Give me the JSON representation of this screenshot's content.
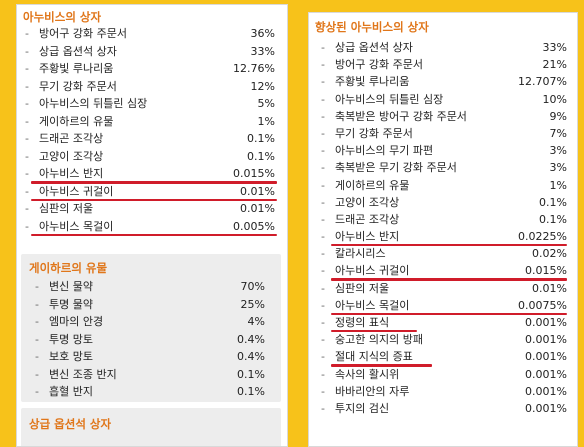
{
  "left_panel": {
    "title": "아누비스의 상자",
    "items": [
      {
        "name": "방어구 강화 주문서",
        "pct": "36%"
      },
      {
        "name": "상급 옵션석 상자",
        "pct": "33%"
      },
      {
        "name": "주황빛 루나리움",
        "pct": "12.76%"
      },
      {
        "name": "무기 강화 주문서",
        "pct": "12%"
      },
      {
        "name": "아누비스의 뒤틀린 심장",
        "pct": "5%"
      },
      {
        "name": "게이하르의 유물",
        "pct": "1%"
      },
      {
        "name": "드래곤 조각상",
        "pct": "0.1%"
      },
      {
        "name": "고양이 조각상",
        "pct": "0.1%"
      },
      {
        "name": "아누비스 반지",
        "pct": "0.015%",
        "marked": true
      },
      {
        "name": "아누비스 귀걸이",
        "pct": "0.01%",
        "marked": true
      },
      {
        "name": "심판의 저울",
        "pct": "0.01%"
      },
      {
        "name": "아누비스 목걸이",
        "pct": "0.005%",
        "marked": true
      }
    ],
    "gehari_box": {
      "title": "게이하르의 유물",
      "items": [
        {
          "name": "변신 물약",
          "pct": "70%"
        },
        {
          "name": "투명 물약",
          "pct": "25%"
        },
        {
          "name": "엠마의 안경",
          "pct": "4%"
        },
        {
          "name": "투명 망토",
          "pct": "0.4%"
        },
        {
          "name": "보호 망토",
          "pct": "0.4%"
        },
        {
          "name": "변신 조종 반지",
          "pct": "0.1%"
        },
        {
          "name": "흡혈 반지",
          "pct": "0.1%"
        }
      ]
    },
    "sanggeup_box": {
      "title": "상급 옵션석 상자"
    }
  },
  "right_panel": {
    "title": "향상된 아누비스의 상자",
    "items": [
      {
        "name": "상급 옵션석 상자",
        "pct": "33%"
      },
      {
        "name": "방어구 강화 주문서",
        "pct": "21%"
      },
      {
        "name": "주황빛 루나리움",
        "pct": "12.707%"
      },
      {
        "name": "아누비스의 뒤틀린 심장",
        "pct": "10%"
      },
      {
        "name": "축복받은 방어구 강화 주문서",
        "pct": "9%"
      },
      {
        "name": "무기 강화 주문서",
        "pct": "7%"
      },
      {
        "name": "아누비스의 무기 파편",
        "pct": "3%"
      },
      {
        "name": "축복받은 무기 강화 주문서",
        "pct": "3%"
      },
      {
        "name": "게이하르의 유물",
        "pct": "1%"
      },
      {
        "name": "고양이 조각상",
        "pct": "0.1%"
      },
      {
        "name": "드래곤 조각상",
        "pct": "0.1%"
      },
      {
        "name": "아누비스 반지",
        "pct": "0.0225%",
        "marked": true
      },
      {
        "name": "칼라시리스",
        "pct": "0.02%"
      },
      {
        "name": "아누비스 귀걸이",
        "pct": "0.015%",
        "marked": true
      },
      {
        "name": "심판의 저울",
        "pct": "0.01%"
      },
      {
        "name": "아누비스 목걸이",
        "pct": "0.0075%",
        "marked": true
      },
      {
        "name": "정령의 표식",
        "pct": "0.001%",
        "marked": true
      },
      {
        "name": "숭고한 의지의 방패",
        "pct": "0.001%"
      },
      {
        "name": "절대 지식의 증표",
        "pct": "0.001%",
        "marked": true
      },
      {
        "name": "속사의 활시위",
        "pct": "0.001%"
      },
      {
        "name": "바바리안의 자루",
        "pct": "0.001%"
      },
      {
        "name": "투지의 검신",
        "pct": "0.001%"
      }
    ]
  },
  "colors": {
    "background": "#f7c21a",
    "title": "#e0761a",
    "underline": "#d01c2a"
  }
}
